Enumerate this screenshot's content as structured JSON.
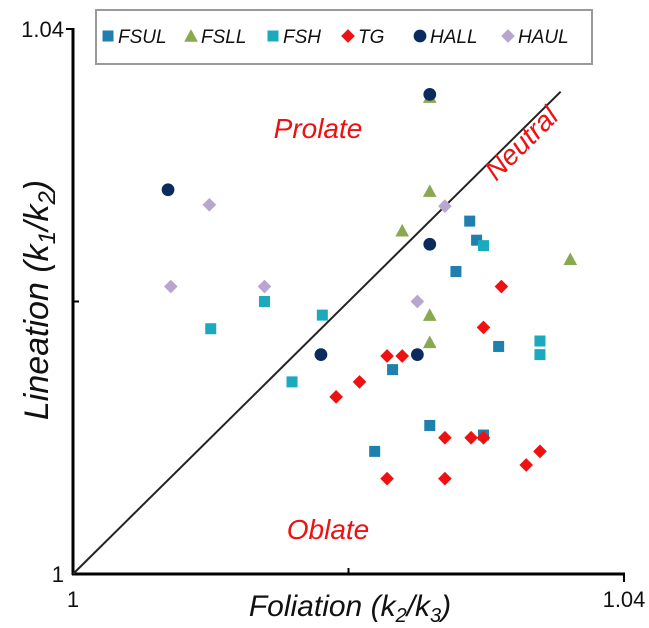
{
  "chart_data": {
    "type": "scatter",
    "title": "",
    "xlabel": "Foliation (k2/k3)",
    "ylabel": "Lineation (k1/k2)",
    "xlabel_parts": {
      "main": "Foliation (k",
      "sub1": "2",
      "mid": "/k",
      "sub2": "3",
      "end": ")"
    },
    "ylabel_parts": {
      "main": "Lineation (k",
      "sub1": "1",
      "mid": "/k",
      "sub2": "2",
      "end": ")"
    },
    "xlim": [
      1.0,
      1.04
    ],
    "ylim": [
      1.0,
      1.04
    ],
    "x_ticks": [
      {
        "value": 1.0,
        "label": "1"
      },
      {
        "value": 1.04,
        "label": "1.04"
      }
    ],
    "y_ticks": [
      {
        "value": 1.0,
        "label": "1"
      },
      {
        "value": 1.04,
        "label": "1.04"
      }
    ],
    "x_minor_ticks": [
      1.02
    ],
    "y_minor_ticks": [
      1.02
    ],
    "grid": false,
    "legend_position": "top",
    "reference_line": {
      "label": "Neutral",
      "from": [
        1.0,
        1.0
      ],
      "to": [
        1.0354,
        1.0354
      ]
    },
    "annotations": [
      {
        "text": "Prolate",
        "x": 1.018,
        "y": 1.0325
      },
      {
        "text": "Oblate",
        "x": 1.02,
        "y": 1.003
      }
    ],
    "series": [
      {
        "name": "FSUL",
        "marker": "square",
        "color": "#1f7fae",
        "points": [
          [
            1.0288,
            1.0259
          ],
          [
            1.0293,
            1.0245
          ],
          [
            1.0278,
            1.0222
          ],
          [
            1.0309,
            1.0167
          ],
          [
            1.0232,
            1.015
          ],
          [
            1.0259,
            1.0109
          ],
          [
            1.0219,
            1.009
          ],
          [
            1.0298,
            1.0102
          ]
        ]
      },
      {
        "name": "FSLL",
        "marker": "triangle",
        "color": "#8aa84f",
        "points": [
          [
            1.0259,
            1.035
          ],
          [
            1.0259,
            1.0281
          ],
          [
            1.0239,
            1.0252
          ],
          [
            1.0259,
            1.019
          ],
          [
            1.0259,
            1.017
          ],
          [
            1.0361,
            1.0231
          ]
        ]
      },
      {
        "name": "FSH",
        "marker": "square",
        "color": "#1aa9bd",
        "points": [
          [
            1.0298,
            1.0241
          ],
          [
            1.0139,
            1.02
          ],
          [
            1.01,
            1.018
          ],
          [
            1.0181,
            1.019
          ],
          [
            1.0159,
            1.0141
          ],
          [
            1.0339,
            1.0171
          ],
          [
            1.0339,
            1.0161
          ]
        ]
      },
      {
        "name": "TG",
        "marker": "diamond",
        "color": "#ee1111",
        "points": [
          [
            1.0311,
            1.0211
          ],
          [
            1.0298,
            1.0181
          ],
          [
            1.0239,
            1.016
          ],
          [
            1.0228,
            1.016
          ],
          [
            1.0208,
            1.0141
          ],
          [
            1.0191,
            1.013
          ],
          [
            1.027,
            1.01
          ],
          [
            1.0289,
            1.01
          ],
          [
            1.0298,
            1.01
          ],
          [
            1.0339,
            1.009
          ],
          [
            1.0329,
            1.008
          ],
          [
            1.0228,
            1.007
          ],
          [
            1.027,
            1.007
          ]
        ]
      },
      {
        "name": "HALL",
        "marker": "circle",
        "color": "#0b2a5e",
        "points": [
          [
            1.0259,
            1.0352
          ],
          [
            1.0069,
            1.0282
          ],
          [
            1.0259,
            1.0242
          ],
          [
            1.018,
            1.0161
          ],
          [
            1.025,
            1.0161
          ]
        ]
      },
      {
        "name": "HAUL",
        "marker": "diamond",
        "color": "#b9a6cf",
        "points": [
          [
            1.0099,
            1.0271
          ],
          [
            1.0071,
            1.0211
          ],
          [
            1.0139,
            1.0211
          ],
          [
            1.025,
            1.02
          ],
          [
            1.027,
            1.027
          ]
        ]
      }
    ]
  }
}
